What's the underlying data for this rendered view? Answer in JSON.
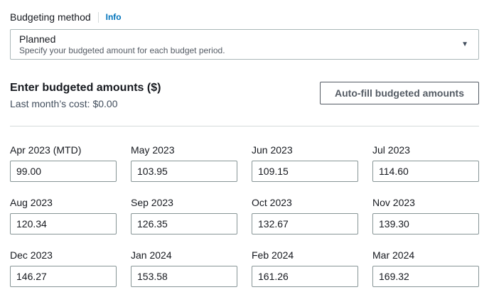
{
  "budgeting_method": {
    "label": "Budgeting method",
    "info_label": "Info",
    "selected_option": {
      "title": "Planned",
      "description": "Specify your budgeted amount for each budget period."
    }
  },
  "amounts_section": {
    "heading": "Enter budgeted amounts ($)",
    "last_month_cost": "Last month’s cost: $0.00",
    "autofill_button_label": "Auto-fill budgeted amounts"
  },
  "fields": [
    {
      "label": "Apr 2023 (MTD)",
      "value": "99.00"
    },
    {
      "label": "May 2023",
      "value": "103.95"
    },
    {
      "label": "Jun 2023",
      "value": "109.15"
    },
    {
      "label": "Jul 2023",
      "value": "114.60"
    },
    {
      "label": "Aug 2023",
      "value": "120.34"
    },
    {
      "label": "Sep 2023",
      "value": "126.35"
    },
    {
      "label": "Oct 2023",
      "value": "132.67"
    },
    {
      "label": "Nov 2023",
      "value": "139.30"
    },
    {
      "label": "Dec 2023",
      "value": "146.27"
    },
    {
      "label": "Jan 2024",
      "value": "153.58"
    },
    {
      "label": "Feb 2024",
      "value": "161.26"
    },
    {
      "label": "Mar 2024",
      "value": "169.32"
    }
  ],
  "icons": {
    "select_caret": "▼"
  },
  "colors": {
    "link_blue": "#0073bb",
    "text_primary": "#16191f",
    "text_secondary": "#545b64",
    "select_border": "#aab7b8",
    "input_border": "#879596",
    "divider": "#d5dbdb"
  }
}
